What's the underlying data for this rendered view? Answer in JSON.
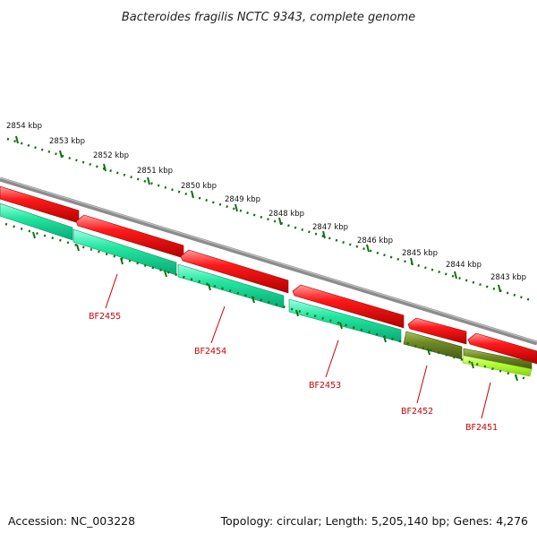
{
  "title": "Bacteroides fragilis NCTC 9343, complete genome",
  "footer": {
    "accession": "Accession: NC_003228",
    "summary": "Topology: circular; Length: 5,205,140 bp; Genes: 4,276"
  },
  "scale": {
    "unit": "kbp",
    "ticks": [
      "2854 kbp",
      "2853 kbp",
      "2852 kbp",
      "2851 kbp",
      "2850 kbp",
      "2849 kbp",
      "2848 kbp",
      "2847 kbp",
      "2846 kbp",
      "2845 kbp",
      "2844 kbp",
      "2843 kbp"
    ]
  },
  "genes": [
    {
      "name": "BF2455",
      "color": "#22e6a0"
    },
    {
      "name": "BF2454",
      "color": "#22e6a0"
    },
    {
      "name": "BF2453",
      "color": "#22e6a0"
    },
    {
      "name": "BF2452",
      "color": "#6f8a25"
    },
    {
      "name": "BF2451",
      "color": "#b8ff3a"
    }
  ],
  "colors": {
    "backbone": "#8c8c8c",
    "forward_feature": "#ff0000",
    "tick_mark": "#127012",
    "label_text": "#cc0000"
  }
}
